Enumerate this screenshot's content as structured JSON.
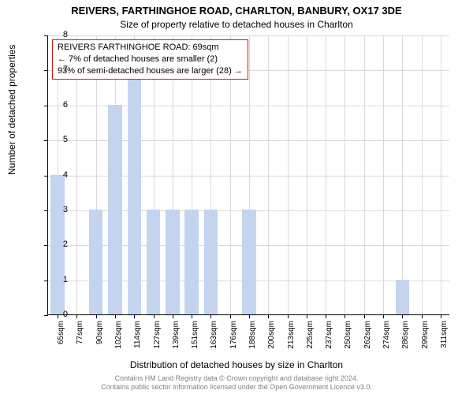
{
  "header": {
    "title": "REIVERS, FARTHINGHOE ROAD, CHARLTON, BANBURY, OX17 3DE",
    "subtitle": "Size of property relative to detached houses in Charlton"
  },
  "axis": {
    "ylabel": "Number of detached properties",
    "xlabel": "Distribution of detached houses by size in Charlton"
  },
  "chart": {
    "type": "bar",
    "ylim_min": 0,
    "ylim_max": 8,
    "ytick_step": 1,
    "background_color": "#ffffff",
    "grid_color": "#d9d9d9",
    "bar_color": "#c3d4ef",
    "bar_width_ratio": 0.72,
    "categories": [
      "65sqm",
      "77sqm",
      "90sqm",
      "102sqm",
      "114sqm",
      "127sqm",
      "139sqm",
      "151sqm",
      "163sqm",
      "176sqm",
      "188sqm",
      "200sqm",
      "213sqm",
      "225sqm",
      "237sqm",
      "250sqm",
      "262sqm",
      "274sqm",
      "286sqm",
      "299sqm",
      "311sqm"
    ],
    "values": [
      4,
      0,
      3,
      6,
      7,
      3,
      3,
      3,
      3,
      0,
      3,
      0,
      0,
      0,
      0,
      0,
      0,
      0,
      1,
      0,
      0
    ]
  },
  "info_box": {
    "border_color": "#d41414",
    "line1": "REIVERS FARTHINGHOE ROAD: 69sqm",
    "line2": "← 7% of detached houses are smaller (2)",
    "line3": "93% of semi-detached houses are larger (28) →"
  },
  "credits": {
    "line1": "Contains HM Land Registry data © Crown copyright and database right 2024.",
    "line2": "Contains public sector information licensed under the Open Government Licence v3.0."
  }
}
